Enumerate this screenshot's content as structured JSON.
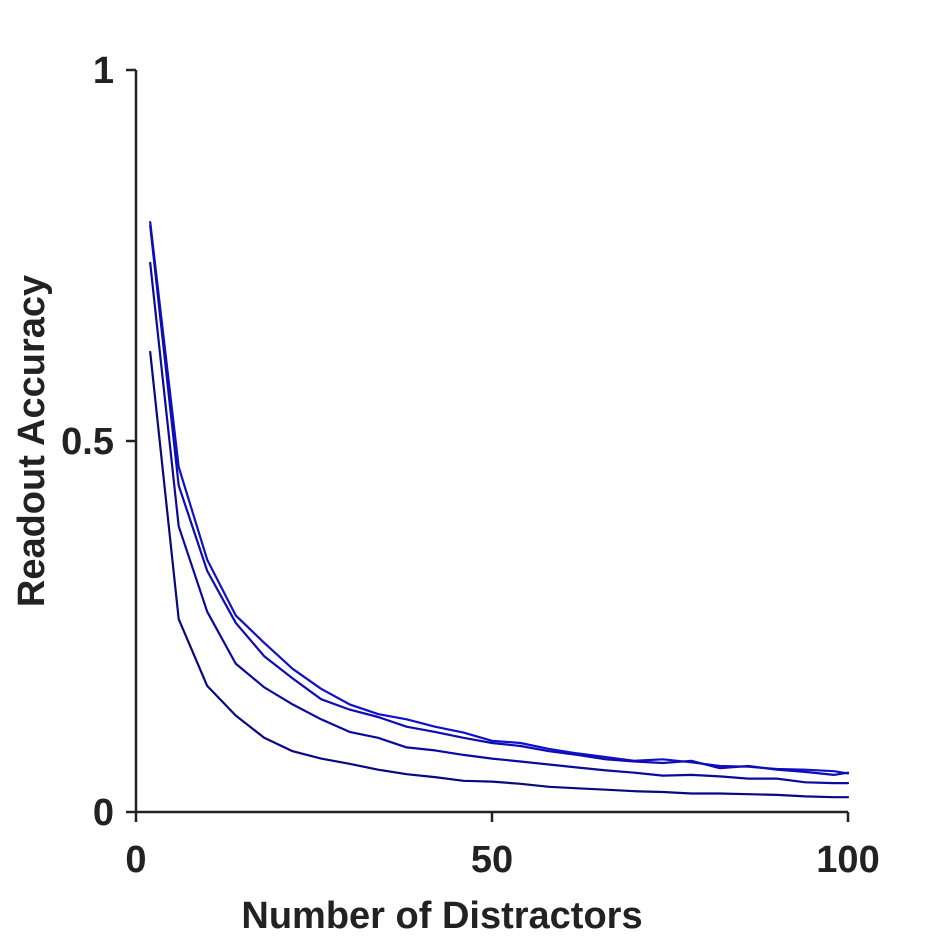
{
  "chart_data": {
    "type": "line",
    "title": "",
    "xlabel": "Number of Distractors",
    "ylabel": "Readout Accuracy",
    "xlim": [
      0,
      100
    ],
    "ylim": [
      0,
      1
    ],
    "xticks": [
      0,
      50,
      100
    ],
    "xtick_labels": [
      "0",
      "50",
      "100"
    ],
    "yticks": [
      0,
      0.5,
      1
    ],
    "ytick_labels": [
      "0",
      "0.5",
      "1"
    ],
    "grid": false,
    "legend": "none",
    "colors": [
      "#1010c8",
      "#0d0db0",
      "#0a0a9c",
      "#08087f"
    ],
    "x": [
      2,
      6,
      10,
      14,
      18,
      22,
      26,
      30,
      34,
      38,
      42,
      46,
      50,
      54,
      58,
      62,
      66,
      70,
      74,
      78,
      82,
      86,
      90,
      94,
      98,
      100
    ],
    "series": [
      {
        "values": [
          0.795,
          0.465,
          0.34,
          0.265,
          0.228,
          0.193,
          0.166,
          0.145,
          0.132,
          0.125,
          0.115,
          0.107,
          0.096,
          0.093,
          0.085,
          0.079,
          0.074,
          0.069,
          0.071,
          0.067,
          0.062,
          0.061,
          0.058,
          0.057,
          0.055,
          0.052
        ]
      },
      {
        "values": [
          0.79,
          0.44,
          0.325,
          0.255,
          0.21,
          0.18,
          0.152,
          0.138,
          0.128,
          0.115,
          0.108,
          0.1,
          0.093,
          0.089,
          0.082,
          0.077,
          0.071,
          0.068,
          0.066,
          0.069,
          0.059,
          0.062,
          0.057,
          0.054,
          0.05,
          0.053
        ]
      },
      {
        "values": [
          0.74,
          0.385,
          0.27,
          0.2,
          0.168,
          0.145,
          0.125,
          0.108,
          0.1,
          0.087,
          0.083,
          0.077,
          0.072,
          0.068,
          0.064,
          0.06,
          0.056,
          0.053,
          0.049,
          0.05,
          0.048,
          0.045,
          0.045,
          0.04,
          0.039,
          0.039
        ]
      },
      {
        "values": [
          0.62,
          0.26,
          0.17,
          0.13,
          0.1,
          0.082,
          0.072,
          0.065,
          0.057,
          0.051,
          0.047,
          0.042,
          0.041,
          0.038,
          0.034,
          0.032,
          0.03,
          0.028,
          0.027,
          0.025,
          0.025,
          0.024,
          0.023,
          0.021,
          0.02,
          0.02
        ]
      }
    ]
  }
}
